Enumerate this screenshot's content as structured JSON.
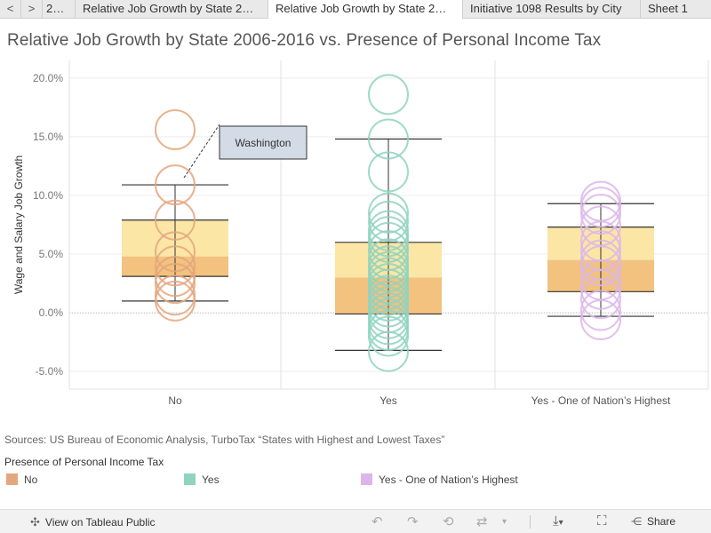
{
  "tabs": {
    "prev_label": "<",
    "next_label": ">",
    "items": [
      {
        "label": "2…",
        "active": false
      },
      {
        "label": "Relative Job Growth by State 2…",
        "active": false
      },
      {
        "label": "Relative Job Growth by State 2…",
        "active": true
      },
      {
        "label": "Initiative 1098 Results by City",
        "active": false
      },
      {
        "label": "Sheet 1",
        "active": false
      }
    ]
  },
  "title": "Relative Job Growth by State 2006-2016 vs. Presence of Personal Income Tax",
  "chart_data": {
    "type": "box_plot_with_points",
    "ylabel": "Wage and Salary Job Growth",
    "xlabel": "",
    "ylim": [
      -6.5,
      21.5
    ],
    "yticks": [
      -5,
      0,
      5,
      10,
      15,
      20
    ],
    "ytick_labels": [
      "-5.0%",
      "0.0%",
      "5.0%",
      "10.0%",
      "15.0%",
      "20.0%"
    ],
    "zero_line": true,
    "categories": [
      "No",
      "Yes",
      "Yes - One of Nation's Highest"
    ],
    "colors": {
      "No": "#e4a67c",
      "Yes": "#8fd4bf",
      "Yes - One of Nation's Highest": "#dcb6ea",
      "box_upper": "#fbe6a6",
      "box_lower": "#f2c27e",
      "whisker": "#333333"
    },
    "boxes": [
      {
        "category": "No",
        "whisker_low": 1.0,
        "q1": 3.1,
        "median": 4.8,
        "q3": 7.9,
        "whisker_high": 10.9
      },
      {
        "category": "Yes",
        "whisker_low": -3.2,
        "q1": -0.1,
        "median": 3.0,
        "q3": 6.0,
        "whisker_high": 14.8
      },
      {
        "category": "Yes - One of Nation's Highest",
        "whisker_low": -0.3,
        "q1": 1.8,
        "median": 4.5,
        "q3": 7.3,
        "whisker_high": 9.3
      }
    ],
    "points": [
      {
        "category": "No",
        "values": [
          15.6,
          10.9,
          7.9,
          5.2,
          4.0,
          3.1,
          2.5,
          1.5,
          1.0
        ]
      },
      {
        "category": "Yes",
        "values": [
          18.6,
          14.8,
          12.0,
          8.5,
          7.8,
          7.0,
          6.5,
          6.0,
          5.3,
          4.6,
          4.0,
          3.5,
          3.0,
          2.5,
          2.0,
          1.5,
          1.0,
          0.5,
          0.0,
          -0.5,
          -1.0,
          -1.5,
          -2.0,
          -3.3
        ]
      },
      {
        "category": "Yes - One of Nation's Highest",
        "values": [
          9.5,
          9.0,
          8.4,
          7.4,
          6.1,
          5.3,
          4.5,
          4.0,
          2.8,
          2.0,
          1.2,
          0.2,
          -0.6
        ]
      }
    ],
    "annotation": {
      "text": "Washington",
      "category": "No",
      "value": 10.9
    }
  },
  "sources": "Sources: US Bureau of Economic Analysis, TurboTax “States with Highest and Lowest Taxes”",
  "legend": {
    "title": "Presence of Personal Income Tax",
    "items": [
      {
        "label": "No",
        "color": "#e4a67c"
      },
      {
        "label": "Yes",
        "color": "#8fd4bf"
      },
      {
        "label": "Yes - One of Nation’s Highest",
        "color": "#dcb6ea"
      }
    ]
  },
  "toolbar": {
    "view_label": "View on Tableau Public",
    "share_label": "Share",
    "icons": [
      "undo-icon",
      "redo-icon",
      "revert-icon",
      "refresh-icon",
      "pause-icon",
      "download-icon",
      "fullscreen-icon",
      "share-icon"
    ]
  }
}
